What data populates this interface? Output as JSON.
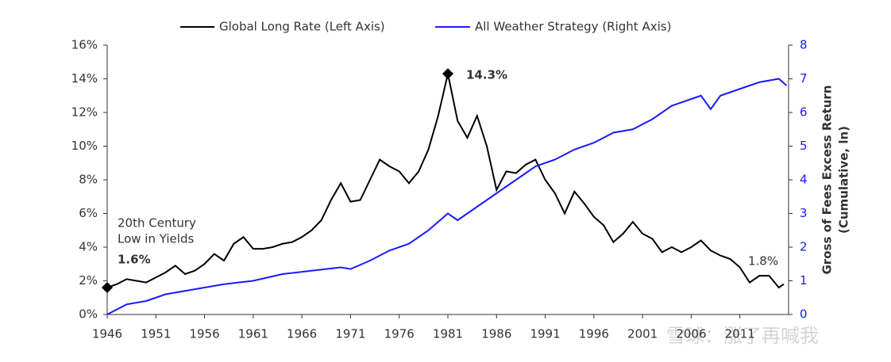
{
  "chart_data": {
    "type": "line",
    "legend": [
      "Global Long Rate (Left Axis)",
      "All Weather Strategy (Right Axis)"
    ],
    "y2_label": [
      "Gross of Fees Excess Return",
      "(Cumulative, ln)"
    ],
    "annotations": {
      "low_title": [
        "20th Century",
        "Low in Yields"
      ],
      "low_value": "1.6%",
      "peak_value": "14.3%",
      "end_value": "1.8%"
    },
    "watermark": "雪球：涨了再喊我",
    "xlim": [
      1946,
      2016
    ],
    "xticks": [
      1946,
      1951,
      1956,
      1961,
      1966,
      1971,
      1976,
      1981,
      1986,
      1991,
      1996,
      2001,
      2006,
      2011
    ],
    "ylim": [
      0,
      16
    ],
    "yticks": [
      {
        "value": 0,
        "label": "0%"
      },
      {
        "value": 2,
        "label": "2%"
      },
      {
        "value": 4,
        "label": "4%"
      },
      {
        "value": 6,
        "label": "6%"
      },
      {
        "value": 8,
        "label": "8%"
      },
      {
        "value": 10,
        "label": "10%"
      },
      {
        "value": 12,
        "label": "12%"
      },
      {
        "value": 14,
        "label": "14%"
      },
      {
        "value": 16,
        "label": "16%"
      }
    ],
    "y2lim": [
      0,
      8
    ],
    "y2ticks": [
      0,
      1,
      2,
      3,
      4,
      5,
      6,
      7,
      8
    ],
    "series": [
      {
        "name": "Global Long Rate (Left Axis)",
        "color": "#000000",
        "axis": "y",
        "x": [
          1946,
          1947,
          1948,
          1949,
          1950,
          1951,
          1952,
          1953,
          1954,
          1955,
          1956,
          1957,
          1958,
          1959,
          1960,
          1961,
          1962,
          1963,
          1964,
          1965,
          1966,
          1967,
          1968,
          1969,
          1970,
          1971,
          1972,
          1973,
          1974,
          1975,
          1976,
          1977,
          1978,
          1979,
          1980,
          1981,
          1982,
          1983,
          1984,
          1985,
          1986,
          1987,
          1988,
          1989,
          1990,
          1991,
          1992,
          1993,
          1994,
          1995,
          1996,
          1997,
          1998,
          1999,
          2000,
          2001,
          2002,
          2003,
          2004,
          2005,
          2006,
          2007,
          2008,
          2009,
          2010,
          2011,
          2012,
          2013,
          2014,
          2015,
          2015.5
        ],
        "values": [
          1.6,
          1.8,
          2.1,
          2.0,
          1.9,
          2.2,
          2.5,
          2.9,
          2.4,
          2.6,
          3.0,
          3.6,
          3.2,
          4.2,
          4.6,
          3.9,
          3.9,
          4.0,
          4.2,
          4.3,
          4.6,
          5.0,
          5.6,
          6.8,
          7.8,
          6.7,
          6.8,
          8.0,
          9.2,
          8.8,
          8.5,
          7.8,
          8.5,
          9.8,
          11.8,
          14.3,
          11.5,
          10.5,
          11.8,
          10.0,
          7.4,
          8.5,
          8.4,
          8.9,
          9.2,
          8.0,
          7.2,
          6.0,
          7.3,
          6.6,
          5.8,
          5.3,
          4.3,
          4.8,
          5.5,
          4.8,
          4.5,
          3.7,
          4.0,
          3.7,
          4.0,
          4.4,
          3.8,
          3.5,
          3.3,
          2.8,
          1.9,
          2.3,
          2.3,
          1.6,
          1.8
        ]
      },
      {
        "name": "All Weather Strategy (Right Axis)",
        "color": "#1a1aff",
        "axis": "y2",
        "x": [
          1946,
          1948,
          1950,
          1952,
          1955,
          1958,
          1961,
          1964,
          1967,
          1970,
          1971,
          1973,
          1975,
          1977,
          1979,
          1981,
          1982,
          1984,
          1986,
          1988,
          1990,
          1992,
          1994,
          1996,
          1998,
          2000,
          2002,
          2004,
          2006,
          2007,
          2008,
          2009,
          2011,
          2013,
          2015,
          2015.8
        ],
        "values": [
          0,
          0.3,
          0.4,
          0.6,
          0.75,
          0.9,
          1.0,
          1.2,
          1.3,
          1.4,
          1.35,
          1.6,
          1.9,
          2.1,
          2.5,
          3.0,
          2.8,
          3.2,
          3.6,
          4.0,
          4.4,
          4.6,
          4.9,
          5.1,
          5.4,
          5.5,
          5.8,
          6.2,
          6.4,
          6.5,
          6.1,
          6.5,
          6.7,
          6.9,
          7.0,
          6.8
        ]
      }
    ]
  }
}
